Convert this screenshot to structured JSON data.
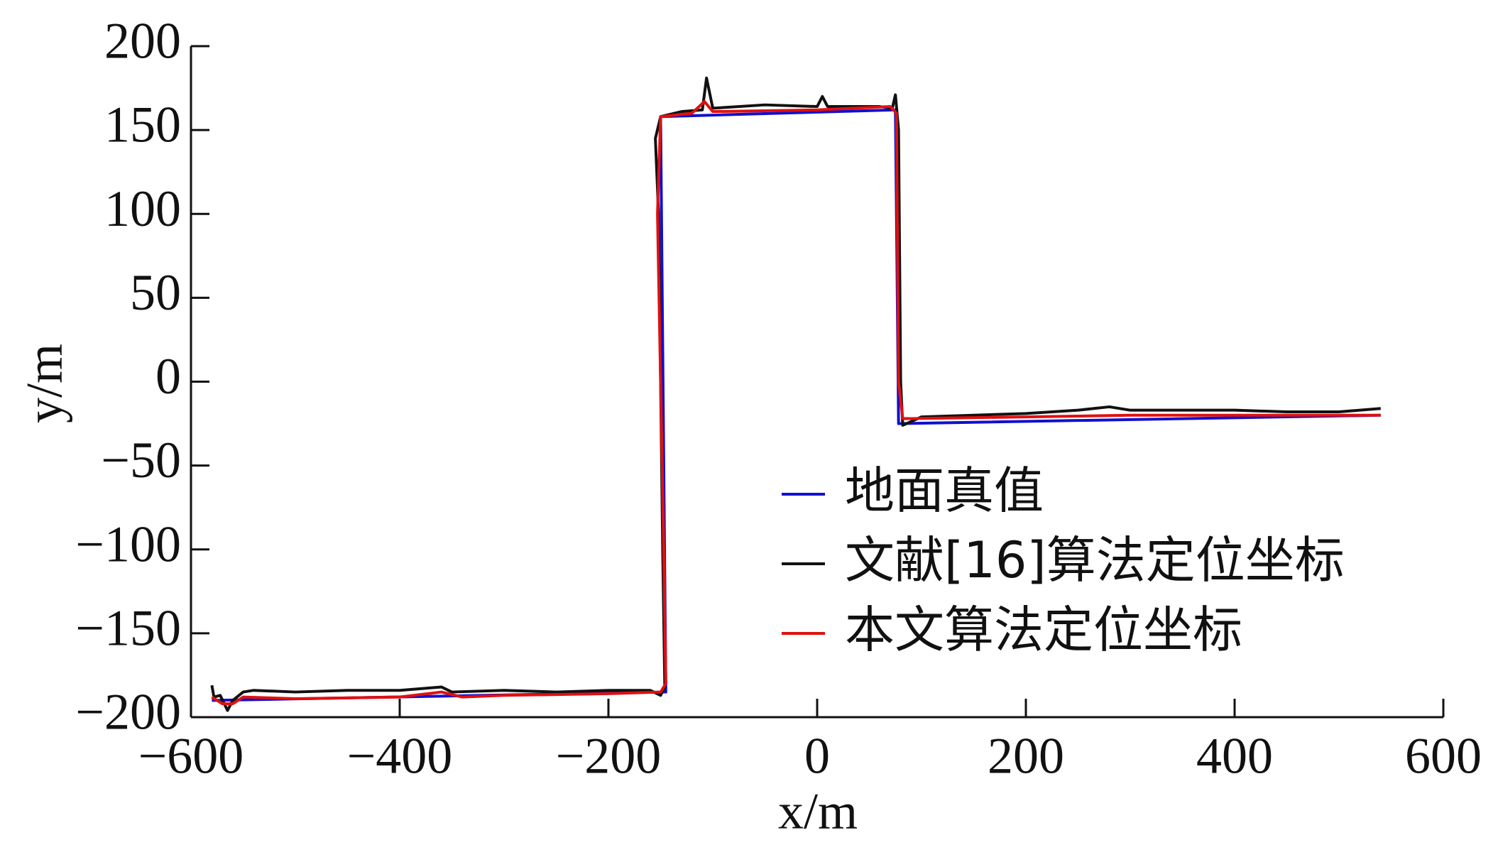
{
  "chart_data": {
    "type": "line",
    "xlabel": "x/m",
    "ylabel": "y/m",
    "xlim": [
      -600,
      600
    ],
    "ylim": [
      -200,
      200
    ],
    "xticks": [
      {
        "value": -600,
        "label": "−600"
      },
      {
        "value": -400,
        "label": "−400"
      },
      {
        "value": -200,
        "label": "−200"
      },
      0,
      200,
      400,
      600
    ],
    "yticks": [
      {
        "value": -200,
        "label": "−200"
      },
      {
        "value": -150,
        "label": "−150"
      },
      {
        "value": -100,
        "label": "−100"
      },
      {
        "value": -50,
        "label": "−50"
      },
      0,
      50,
      100,
      150,
      200
    ],
    "series": [
      {
        "name": "地面真值",
        "color": "#1010d0",
        "x": [
          -580,
          -145,
          -150,
          75,
          78,
          540
        ],
        "values": [
          -190,
          -185,
          158,
          162,
          -25,
          -20
        ]
      },
      {
        "name": "文献[16]算法定位坐标",
        "color": "#111111",
        "x": [
          -580,
          -578,
          -572,
          -565,
          -560,
          -550,
          -540,
          -500,
          -450,
          -400,
          -360,
          -350,
          -300,
          -250,
          -200,
          -160,
          -150,
          -146,
          -148,
          -150,
          -152,
          -155,
          -150,
          -130,
          -110,
          -106,
          -100,
          -50,
          0,
          5,
          10,
          60,
          72,
          75,
          78,
          80,
          82,
          100,
          150,
          200,
          250,
          280,
          300,
          350,
          400,
          450,
          500,
          540
        ],
        "values": [
          -181,
          -188,
          -187,
          -196,
          -190,
          -185,
          -184,
          -185,
          -184,
          -184,
          -182,
          -185,
          -184,
          -185,
          -184,
          -184,
          -187,
          -182,
          -100,
          0,
          100,
          145,
          158,
          161,
          162,
          181,
          163,
          165,
          164,
          170,
          164,
          164,
          163,
          171,
          150,
          0,
          -26,
          -21,
          -20,
          -19,
          -17,
          -15,
          -17,
          -17,
          -17,
          -18,
          -18,
          -16
        ]
      },
      {
        "name": "本文算法定位坐标",
        "color": "#e01010",
        "x": [
          -580,
          -570,
          -560,
          -550,
          -500,
          -400,
          -360,
          -340,
          -300,
          -200,
          -150,
          -145,
          -147,
          -150,
          -153,
          -150,
          -120,
          -108,
          -100,
          0,
          70,
          76,
          78,
          82,
          90,
          200,
          300,
          400,
          540
        ],
        "values": [
          -188,
          -192,
          -192,
          -188,
          -189,
          -188,
          -185,
          -188,
          -187,
          -186,
          -185,
          -180,
          -100,
          0,
          100,
          158,
          160,
          167,
          161,
          162,
          164,
          160,
          0,
          -22,
          -22,
          -21,
          -20,
          -20,
          -20
        ]
      }
    ]
  }
}
